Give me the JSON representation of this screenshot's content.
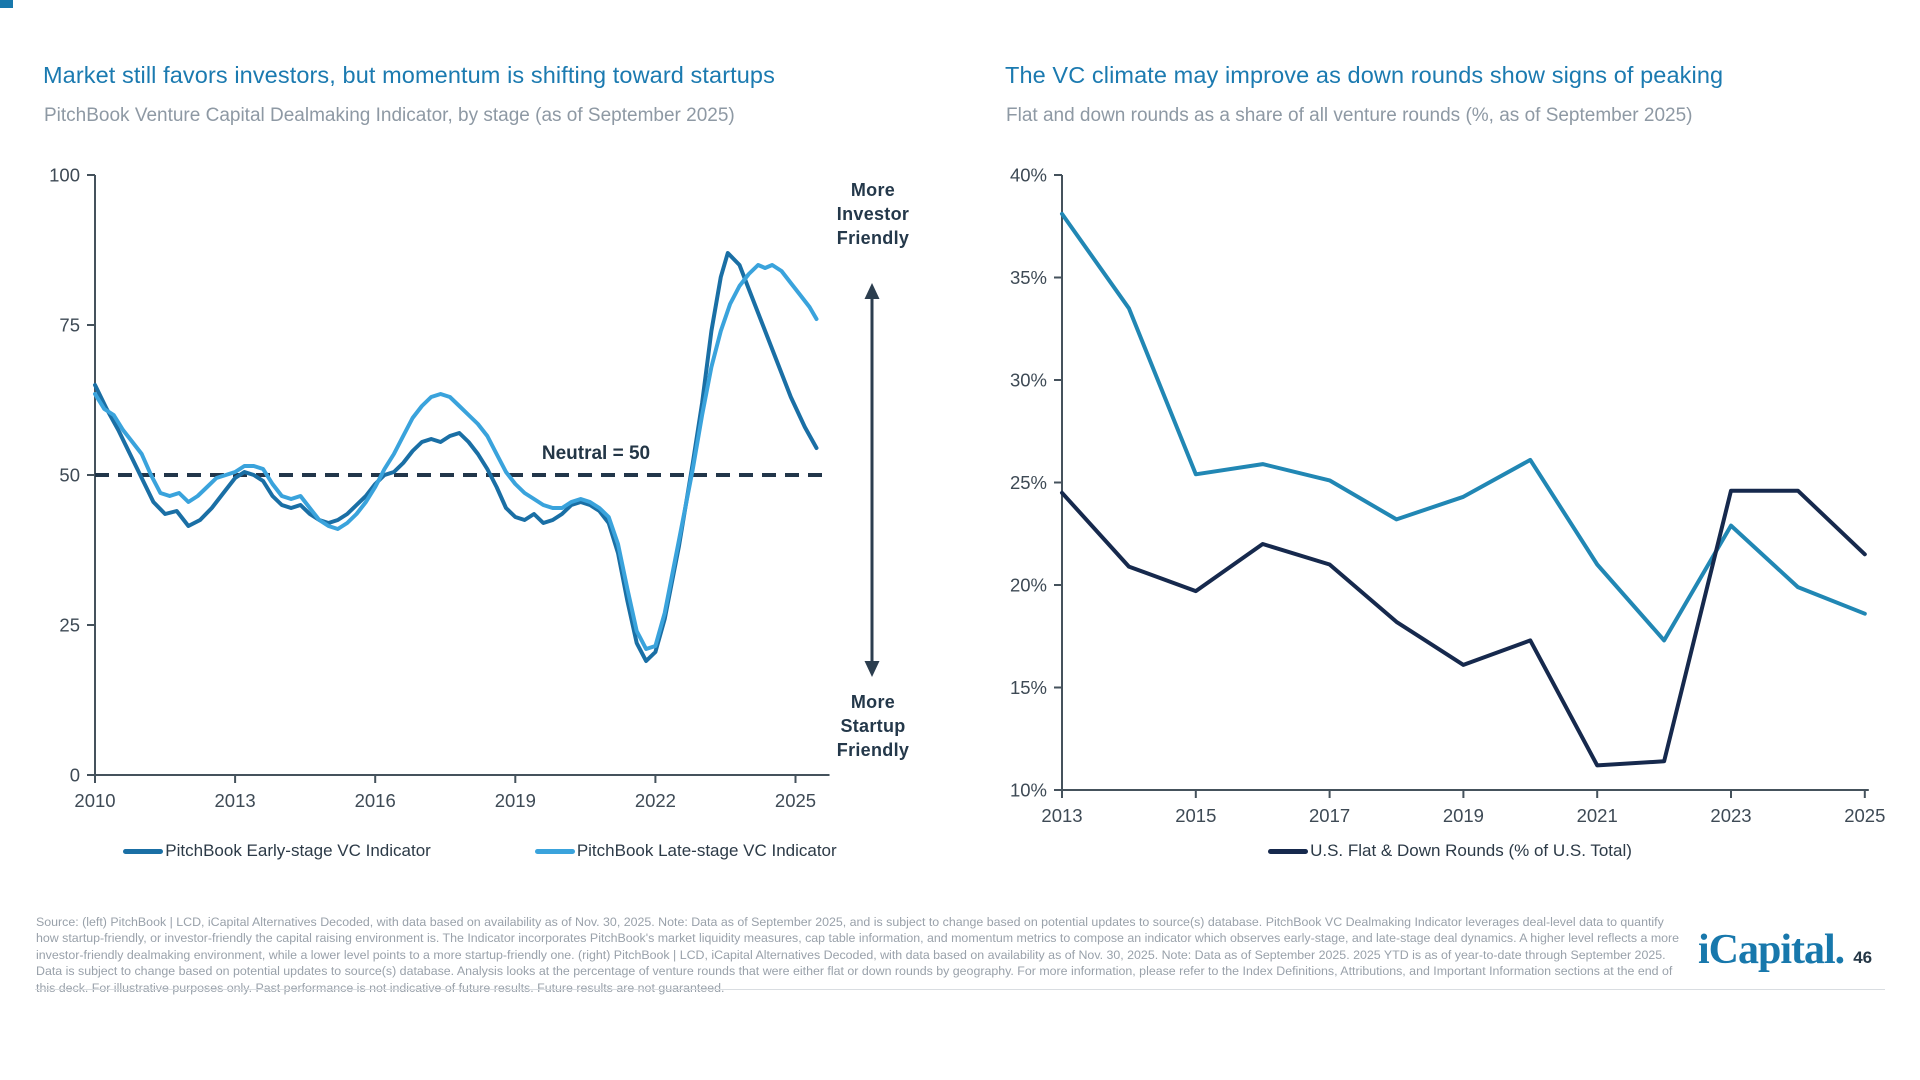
{
  "page": {
    "accent_color": "#1878ac",
    "logo_text": "iCapital.",
    "page_number": "46"
  },
  "chart_data": [
    {
      "type": "line",
      "title": "Market still favors investors, but momentum is shifting toward startups",
      "subtitle": "PitchBook Venture Capital Dealmaking Indicator, by stage (as of September 2025)",
      "xlim": [
        2010,
        2025.6
      ],
      "ylim": [
        0,
        100
      ],
      "x_ticks": [
        2010,
        2013,
        2016,
        2019,
        2022,
        2025
      ],
      "y_ticks": [
        0,
        25,
        50,
        75,
        100
      ],
      "grid": false,
      "neutral_line": {
        "value": 50,
        "label": "Neutral = 50"
      },
      "annotation_top": [
        "More",
        "Investor",
        "Friendly"
      ],
      "annotation_bottom": [
        "More",
        "Startup",
        "Friendly"
      ],
      "legend_position": "bottom",
      "series": [
        {
          "name": "PitchBook Early-stage VC Indicator",
          "color": "#1a6fa5",
          "points": [
            [
              2010.0,
              65
            ],
            [
              2010.25,
              61
            ],
            [
              2010.5,
              57.5
            ],
            [
              2010.75,
              53.5
            ],
            [
              2011.0,
              49.5
            ],
            [
              2011.25,
              45.5
            ],
            [
              2011.5,
              43.5
            ],
            [
              2011.75,
              44
            ],
            [
              2012.0,
              41.5
            ],
            [
              2012.25,
              42.5
            ],
            [
              2012.5,
              44.5
            ],
            [
              2012.75,
              47
            ],
            [
              2013.0,
              49.5
            ],
            [
              2013.2,
              50.5
            ],
            [
              2013.4,
              50
            ],
            [
              2013.6,
              49
            ],
            [
              2013.8,
              46.5
            ],
            [
              2014.0,
              45
            ],
            [
              2014.2,
              44.5
            ],
            [
              2014.4,
              45
            ],
            [
              2014.6,
              43.5
            ],
            [
              2014.8,
              42.5
            ],
            [
              2015.0,
              42
            ],
            [
              2015.2,
              42.5
            ],
            [
              2015.4,
              43.5
            ],
            [
              2015.6,
              45
            ],
            [
              2015.8,
              46.5
            ],
            [
              2016.0,
              48.5
            ],
            [
              2016.2,
              50
            ],
            [
              2016.4,
              50.5
            ],
            [
              2016.6,
              52
            ],
            [
              2016.8,
              54
            ],
            [
              2017.0,
              55.5
            ],
            [
              2017.2,
              56
            ],
            [
              2017.4,
              55.5
            ],
            [
              2017.6,
              56.5
            ],
            [
              2017.8,
              57
            ],
            [
              2018.0,
              55.5
            ],
            [
              2018.2,
              53.5
            ],
            [
              2018.4,
              51
            ],
            [
              2018.6,
              48
            ],
            [
              2018.8,
              44.5
            ],
            [
              2019.0,
              43
            ],
            [
              2019.2,
              42.5
            ],
            [
              2019.4,
              43.5
            ],
            [
              2019.6,
              42
            ],
            [
              2019.8,
              42.5
            ],
            [
              2020.0,
              43.5
            ],
            [
              2020.2,
              45
            ],
            [
              2020.4,
              45.5
            ],
            [
              2020.6,
              45
            ],
            [
              2020.8,
              44
            ],
            [
              2021.0,
              42
            ],
            [
              2021.2,
              37
            ],
            [
              2021.4,
              29
            ],
            [
              2021.6,
              22
            ],
            [
              2021.8,
              19
            ],
            [
              2022.0,
              20.5
            ],
            [
              2022.2,
              26
            ],
            [
              2022.5,
              38
            ],
            [
              2022.8,
              52
            ],
            [
              2023.0,
              62
            ],
            [
              2023.2,
              74
            ],
            [
              2023.4,
              83
            ],
            [
              2023.55,
              87
            ],
            [
              2023.8,
              85
            ],
            [
              2024.0,
              81
            ],
            [
              2024.3,
              75
            ],
            [
              2024.6,
              69
            ],
            [
              2024.9,
              63
            ],
            [
              2025.2,
              58
            ],
            [
              2025.45,
              54.5
            ]
          ]
        },
        {
          "name": "PitchBook Late-stage VC Indicator",
          "color": "#3aa3dc",
          "points": [
            [
              2010.0,
              63.5
            ],
            [
              2010.2,
              61
            ],
            [
              2010.4,
              60
            ],
            [
              2010.6,
              57.5
            ],
            [
              2010.8,
              55.5
            ],
            [
              2011.0,
              53.5
            ],
            [
              2011.2,
              50
            ],
            [
              2011.4,
              47
            ],
            [
              2011.6,
              46.5
            ],
            [
              2011.8,
              47
            ],
            [
              2012.0,
              45.5
            ],
            [
              2012.2,
              46.5
            ],
            [
              2012.4,
              48
            ],
            [
              2012.6,
              49.5
            ],
            [
              2012.8,
              50
            ],
            [
              2013.0,
              50.5
            ],
            [
              2013.2,
              51.5
            ],
            [
              2013.4,
              51.5
            ],
            [
              2013.6,
              51
            ],
            [
              2013.8,
              48.5
            ],
            [
              2014.0,
              46.5
            ],
            [
              2014.2,
              46
            ],
            [
              2014.4,
              46.5
            ],
            [
              2014.6,
              44.5
            ],
            [
              2014.8,
              42.5
            ],
            [
              2015.0,
              41.5
            ],
            [
              2015.2,
              41
            ],
            [
              2015.4,
              42
            ],
            [
              2015.6,
              43.5
            ],
            [
              2015.8,
              45.5
            ],
            [
              2016.0,
              48
            ],
            [
              2016.2,
              51
            ],
            [
              2016.4,
              53.5
            ],
            [
              2016.6,
              56.5
            ],
            [
              2016.8,
              59.5
            ],
            [
              2017.0,
              61.5
            ],
            [
              2017.2,
              63
            ],
            [
              2017.4,
              63.5
            ],
            [
              2017.6,
              63
            ],
            [
              2017.8,
              61.5
            ],
            [
              2018.0,
              60
            ],
            [
              2018.2,
              58.5
            ],
            [
              2018.4,
              56.5
            ],
            [
              2018.6,
              53.5
            ],
            [
              2018.8,
              50.5
            ],
            [
              2019.0,
              48.5
            ],
            [
              2019.2,
              47
            ],
            [
              2019.4,
              46
            ],
            [
              2019.6,
              45
            ],
            [
              2019.8,
              44.5
            ],
            [
              2020.0,
              44.5
            ],
            [
              2020.2,
              45.5
            ],
            [
              2020.4,
              46
            ],
            [
              2020.6,
              45.5
            ],
            [
              2020.8,
              44.5
            ],
            [
              2021.0,
              43
            ],
            [
              2021.2,
              38.5
            ],
            [
              2021.4,
              31
            ],
            [
              2021.6,
              24
            ],
            [
              2021.8,
              21
            ],
            [
              2022.0,
              21.5
            ],
            [
              2022.2,
              27
            ],
            [
              2022.5,
              39
            ],
            [
              2022.8,
              51
            ],
            [
              2023.0,
              60
            ],
            [
              2023.2,
              68
            ],
            [
              2023.4,
              74
            ],
            [
              2023.6,
              78.5
            ],
            [
              2023.8,
              81.5
            ],
            [
              2024.0,
              83.5
            ],
            [
              2024.2,
              85
            ],
            [
              2024.35,
              84.5
            ],
            [
              2024.5,
              85
            ],
            [
              2024.7,
              84
            ],
            [
              2024.9,
              82
            ],
            [
              2025.1,
              80
            ],
            [
              2025.3,
              78
            ],
            [
              2025.45,
              76
            ]
          ]
        }
      ]
    },
    {
      "type": "line",
      "title": "The VC climate may improve as down rounds show signs of peaking",
      "subtitle": "Flat and down rounds as a share of all venture rounds (%, as of September 2025)",
      "xlim": [
        2013,
        2025
      ],
      "ylim": [
        10,
        40
      ],
      "x_ticks": [
        2013,
        2015,
        2017,
        2019,
        2021,
        2023,
        2025
      ],
      "y_ticks": [
        10,
        15,
        20,
        25,
        30,
        35,
        40
      ],
      "y_tick_suffix": "%",
      "grid": false,
      "x": [
        2013,
        2014,
        2015,
        2016,
        2017,
        2018,
        2019,
        2020,
        2021,
        2022,
        2023,
        2024,
        2025
      ],
      "legend_position": "bottom",
      "series": [
        {
          "name": "",
          "in_legend": false,
          "color": "#2187b4",
          "values": [
            38.1,
            33.5,
            25.4,
            25.9,
            25.1,
            23.2,
            24.3,
            26.1,
            21.0,
            17.3,
            22.9,
            19.9,
            18.6
          ]
        },
        {
          "name": "U.S. Flat & Down Rounds (% of U.S. Total)",
          "in_legend": true,
          "color": "#16294d",
          "values": [
            24.5,
            20.9,
            19.7,
            22.0,
            21.0,
            18.2,
            16.1,
            17.3,
            11.2,
            11.4,
            24.6,
            24.6,
            21.5
          ]
        }
      ]
    }
  ],
  "footer": {
    "lines": [
      "Source: (left) PitchBook | LCD, iCapital Alternatives Decoded, with data based on availability as of Nov. 30, 2025. Note: Data as of September 2025, and is subject to change based on potential updates to source(s) database. PitchBook VC Dealmaking Indicator leverages deal-level data to quantify",
      "how startup-friendly, or investor-friendly the capital raising environment is. The Indicator incorporates PitchBook's market liquidity measures, cap table information, and momentum metrics to compose an indicator which observes early-stage, and late-stage deal dynamics. A higher level reflects a more",
      "investor-friendly dealmaking environment, while a lower level points to a more startup-friendly one. (right) PitchBook | LCD, iCapital Alternatives Decoded, with data based on availability as of Nov. 30, 2025. Note: Data as of September 2025. 2025 YTD is as of year-to-date through September 2025.",
      "Data is subject to change based on potential updates to source(s) database. Analysis looks at the percentage of venture rounds that were either flat or down rounds by geography. For more information, please refer to the Index Definitions, Attributions, and Important Information sections at the end of",
      "this deck. For illustrative purposes only. Past performance is not indicative of future results. Future results are not guaranteed."
    ]
  }
}
